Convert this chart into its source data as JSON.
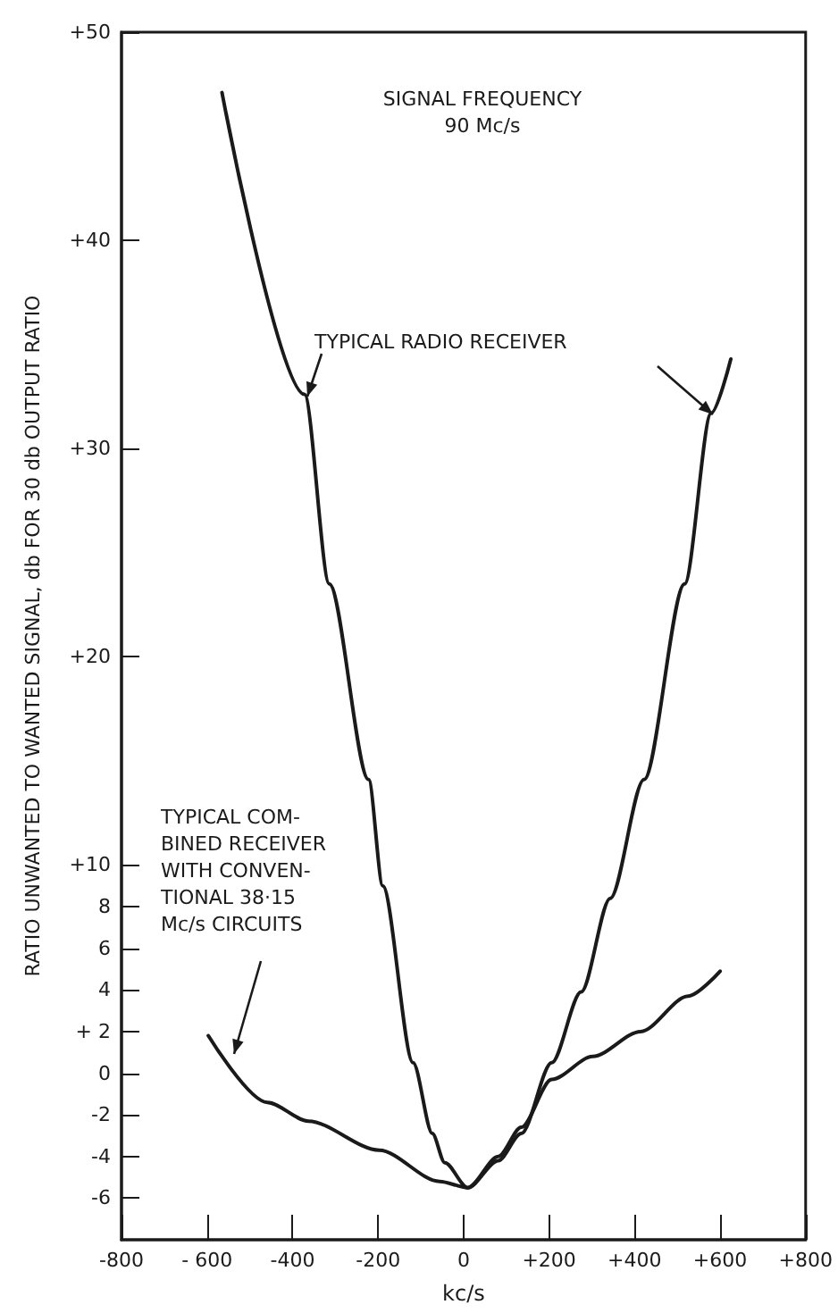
{
  "chart_data": {
    "type": "line",
    "xlabel": "kc/s",
    "ylabel": "RATIO UNWANTED TO WANTED SIGNAL, db FOR 30 db OUTPUT RATIO",
    "annotations": [
      "SIGNAL FREQUENCY\n90 Mc/s"
    ],
    "xlim": [
      -800,
      800
    ],
    "xticks": [
      {
        "value": -800,
        "label": "-800"
      },
      {
        "value": -600,
        "label": "- 600"
      },
      {
        "value": -400,
        "label": "-400"
      },
      {
        "value": -200,
        "label": "-200"
      },
      0,
      {
        "value": 200,
        "label": "+200"
      },
      {
        "value": 400,
        "label": "+400"
      },
      {
        "value": 600,
        "label": "+600"
      },
      {
        "value": 800,
        "label": "+800"
      }
    ],
    "ylim": [
      -8,
      50
    ],
    "yticks": [
      {
        "value": 50,
        "label": "+50"
      },
      {
        "value": 40,
        "label": "+40"
      },
      {
        "value": 30,
        "label": "+30"
      },
      {
        "value": 20,
        "label": "+20"
      },
      {
        "value": 10,
        "label": "+10"
      },
      8,
      6,
      4,
      {
        "value": 2,
        "label": "+ 2"
      },
      0,
      -2,
      -4,
      -6
    ],
    "grid": false,
    "legend": false,
    "marker": "none",
    "line_style": "solid",
    "series": [
      {
        "name": "TYPICAL RADIO RECEIVER",
        "color": "#1a1a1a",
        "x": [
          -565,
          -372,
          -314,
          -222,
          -189,
          -118,
          -73,
          -44,
          10,
          81,
          135,
          206,
          275,
          343,
          422,
          517,
          579,
          625
        ],
        "values": [
          47.1,
          32.6,
          23.5,
          14.1,
          9.0,
          0.5,
          -2.9,
          -4.3,
          -5.5,
          -4.2,
          -2.9,
          0.5,
          3.9,
          8.4,
          14.1,
          23.5,
          31.7,
          34.3
        ]
      },
      {
        "name": "TYPICAL COM-\nBINED RECEIVER\nWITH CONVEN-\nTIONAL 38·15\nMc/s CIRCUITS",
        "color": "#1a1a1a",
        "x": [
          -597,
          -459,
          -363,
          -197,
          -56,
          10,
          81,
          135,
          206,
          302,
          414,
          525,
          600
        ],
        "values": [
          1.8,
          -1.4,
          -2.3,
          -3.7,
          -5.2,
          -5.5,
          -4.0,
          -2.6,
          -0.3,
          0.8,
          2.0,
          3.7,
          4.9
        ]
      }
    ]
  }
}
